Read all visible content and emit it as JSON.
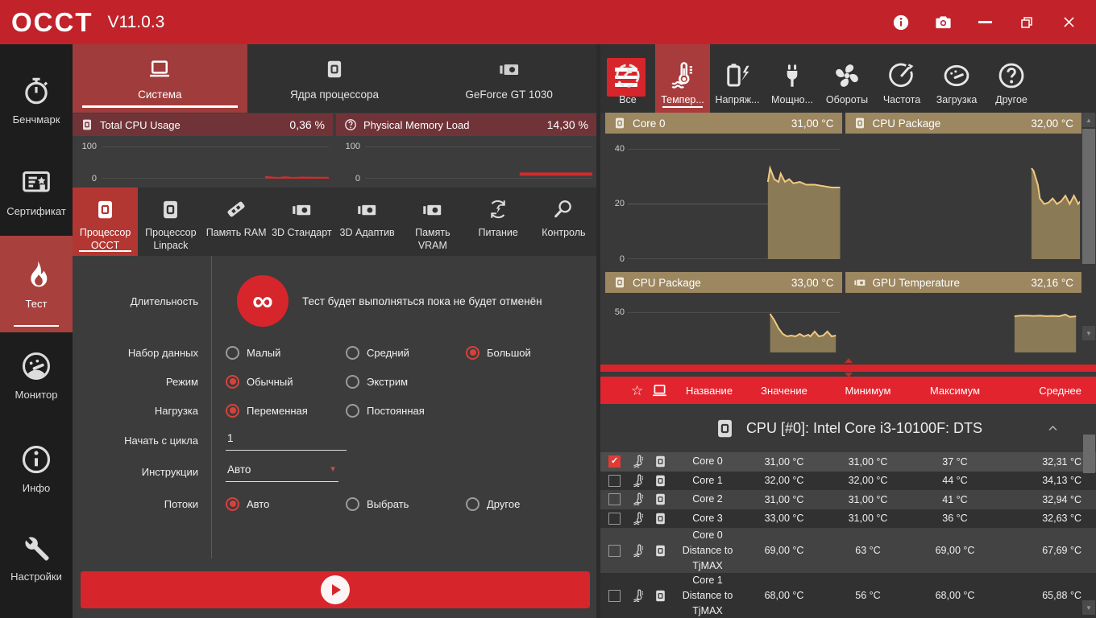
{
  "titlebar": {
    "logo": "OCCT",
    "version": "V11.0.3",
    "window_icons": [
      "info-icon",
      "screenshot-icon",
      "minimize-icon",
      "restore-icon",
      "close-icon"
    ]
  },
  "sidebar": {
    "items": [
      {
        "label": "Бенчмарк",
        "icon": "stopwatch-icon",
        "active": false
      },
      {
        "label": "Сертификат",
        "icon": "certificate-icon",
        "active": false
      },
      {
        "label": "Тест",
        "icon": "flame-icon",
        "active": true
      },
      {
        "label": "Монитор",
        "icon": "gauge-face-icon",
        "active": false
      },
      {
        "label": "Инфо",
        "icon": "info-circle-icon",
        "active": false
      },
      {
        "label": "Настройки",
        "icon": "wrench-icon",
        "active": false
      }
    ]
  },
  "main": {
    "device_tabs": [
      {
        "label": "Система",
        "icon": "laptop-icon",
        "active": true
      },
      {
        "label": "Ядра процессора",
        "icon": "cpu-chip-icon",
        "active": false
      },
      {
        "label": "GeForce GT 1030",
        "icon": "gpu-card-icon",
        "active": false
      }
    ],
    "monitors": [
      {
        "label": "Total CPU Usage",
        "value": "0,36 %",
        "icon": "cpu-chip-icon",
        "ymax": "100",
        "ymin": "0"
      },
      {
        "label": "Physical Memory Load",
        "value": "14,30 %",
        "icon": "question-circle-icon",
        "ymax": "100",
        "ymin": "0"
      }
    ],
    "test_tabs": [
      {
        "label": "Процессор OCCT",
        "icon": "cpu-chip-icon",
        "active": true
      },
      {
        "label": "Процессор Linpack",
        "icon": "cpu-chip-icon",
        "active": false
      },
      {
        "label": "Память RAM",
        "icon": "ram-icon",
        "active": false
      },
      {
        "label": "3D Стандарт",
        "icon": "gpu-card-icon",
        "active": false
      },
      {
        "label": "3D Адаптив",
        "icon": "gpu-card-icon",
        "active": false
      },
      {
        "label": "Память VRAM",
        "icon": "gpu-card-icon",
        "active": false
      },
      {
        "label": "Питание",
        "icon": "power-cycle-icon",
        "active": false
      },
      {
        "label": "Контроль",
        "icon": "magnifier-icon",
        "active": false
      }
    ],
    "form": {
      "duration": {
        "label": "Длительность",
        "infinity": "∞",
        "note": "Тест будет выполняться пока не будет отменён"
      },
      "dataset": {
        "label": "Набор данных",
        "options": [
          {
            "label": "Малый",
            "checked": false
          },
          {
            "label": "Средний",
            "checked": false
          },
          {
            "label": "Большой",
            "checked": true
          }
        ]
      },
      "mode": {
        "label": "Режим",
        "options": [
          {
            "label": "Обычный",
            "checked": true
          },
          {
            "label": "Экстрим",
            "checked": false
          }
        ]
      },
      "load": {
        "label": "Нагрузка",
        "options": [
          {
            "label": "Переменная",
            "checked": true
          },
          {
            "label": "Постоянная",
            "checked": false
          }
        ]
      },
      "start_cycle": {
        "label": "Начать с цикла",
        "value": "1"
      },
      "instructions": {
        "label": "Инструкции",
        "value": "Авто"
      },
      "threads": {
        "label": "Потоки",
        "options": [
          {
            "label": "Авто",
            "checked": true
          },
          {
            "label": "Выбрать",
            "checked": false
          },
          {
            "label": "Другое",
            "checked": false
          }
        ]
      }
    }
  },
  "monitoring": {
    "categories": [
      {
        "label": "Все",
        "icon": "all-gauge-icon",
        "active": false
      },
      {
        "label": "Темпер...",
        "icon": "thermometer-icon",
        "active": true
      },
      {
        "label": "Напряж...",
        "icon": "battery-bolt-icon",
        "active": false
      },
      {
        "label": "Мощно...",
        "icon": "plug-icon",
        "active": false
      },
      {
        "label": "Обороты",
        "icon": "fan-icon",
        "active": false
      },
      {
        "label": "Частота",
        "icon": "speedometer-icon",
        "active": false
      },
      {
        "label": "Загрузка",
        "icon": "load-gauge-icon",
        "active": false
      },
      {
        "label": "Другое",
        "icon": "question-circle-icon",
        "active": false
      }
    ],
    "graphs": [
      {
        "title": "Core 0",
        "value": "31,00 °C",
        "icon": "cpu-chip-icon",
        "yticks": [
          "40",
          "20",
          "0"
        ]
      },
      {
        "title": "CPU Package",
        "value": "32,00 °C",
        "icon": "cpu-chip-icon",
        "yticks": []
      },
      {
        "title": "CPU Package",
        "value": "33,00 °C",
        "icon": "cpu-chip-icon",
        "yticks": [
          "50"
        ]
      },
      {
        "title": "GPU Temperature",
        "value": "32,16 °C",
        "icon": "gpu-card-icon",
        "yticks": []
      }
    ],
    "table": {
      "columns": [
        "Название",
        "Значение",
        "Минимум",
        "Максимум",
        "Среднее"
      ],
      "group": "CPU [#0]: Intel Core i3-10100F: DTS",
      "rows": [
        {
          "name": "Core 0",
          "value": "31,00 °C",
          "min": "31,00 °C",
          "max": "37 °C",
          "avg": "32,31 °C",
          "checked": true
        },
        {
          "name": "Core 1",
          "value": "32,00 °C",
          "min": "32,00 °C",
          "max": "44 °C",
          "avg": "34,13 °C",
          "checked": false
        },
        {
          "name": "Core 2",
          "value": "31,00 °C",
          "min": "31,00 °C",
          "max": "41 °C",
          "avg": "32,94 °C",
          "checked": false
        },
        {
          "name": "Core 3",
          "value": "33,00 °C",
          "min": "31,00 °C",
          "max": "36 °C",
          "avg": "32,63 °C",
          "checked": false
        },
        {
          "name": "Core 0\nDistance to\nTjMAX",
          "value": "69,00 °C",
          "min": "63 °C",
          "max": "69,00 °C",
          "avg": "67,69 °C",
          "checked": false
        },
        {
          "name": "Core 1\nDistance to\nTjMAX",
          "value": "68,00 °C",
          "min": "56 °C",
          "max": "68,00 °C",
          "avg": "65,88 °C",
          "checked": false
        }
      ]
    }
  },
  "colors": {
    "titlebar_red": "#c2232a",
    "bright_red": "#d6252b",
    "active_tab_red": "#a83c3c",
    "table_header_red": "#e1242e",
    "monitor_header_maroon": "#703438",
    "graph_header_tan": "#9c8760",
    "graph_line_gold": "#f2c983",
    "usage_line_red": "#d22b2b"
  },
  "chart_data": [
    {
      "type": "line",
      "title": "Total CPU Usage",
      "current_value": "0,36 %",
      "ylabel": "%",
      "ylim": [
        0,
        100
      ],
      "grid": [
        0,
        100
      ],
      "color": "#d22b2b",
      "thick": 2.5,
      "points": [
        [
          72,
          5
        ],
        [
          75,
          3
        ],
        [
          78,
          2
        ],
        [
          81,
          4
        ],
        [
          84,
          2
        ],
        [
          88,
          3
        ],
        [
          94,
          2.5
        ],
        [
          100,
          2.5
        ]
      ]
    },
    {
      "type": "line",
      "title": "Physical Memory Load",
      "current_value": "14,30 %",
      "ylabel": "%",
      "ylim": [
        0,
        100
      ],
      "grid": [
        0,
        100
      ],
      "color": "#d22b2b",
      "thick": 4,
      "points": [
        [
          68,
          14
        ],
        [
          100,
          14
        ]
      ]
    },
    {
      "type": "area",
      "title": "Core 0",
      "current_value": "31,00 °C",
      "ylabel": "°C",
      "ylim": [
        0,
        40
      ],
      "grid": [
        0,
        50,
        100
      ],
      "color": "#f2c983",
      "fill": "#8a7a55",
      "points": [
        [
          66,
          28
        ],
        [
          67,
          33
        ],
        [
          69,
          29
        ],
        [
          71,
          28
        ],
        [
          72,
          31
        ],
        [
          74,
          28
        ],
        [
          76,
          29
        ],
        [
          78,
          27.5
        ],
        [
          81,
          28
        ],
        [
          84,
          27
        ],
        [
          88,
          27
        ],
        [
          92,
          26.5
        ],
        [
          96,
          26
        ],
        [
          100,
          26
        ]
      ]
    },
    {
      "type": "area",
      "title": "CPU Package",
      "current_value": "32,00 °C",
      "ylabel": "°C",
      "ylim": [
        0,
        40
      ],
      "grid": [],
      "color": "#f2c983",
      "fill": "#8a7a55",
      "points": [
        [
          77,
          33
        ],
        [
          78,
          32
        ],
        [
          80,
          27
        ],
        [
          81,
          22
        ],
        [
          83,
          20
        ],
        [
          85,
          20.5
        ],
        [
          87,
          22
        ],
        [
          89,
          20
        ],
        [
          91,
          21
        ],
        [
          93,
          23
        ],
        [
          95,
          20
        ],
        [
          97,
          23
        ],
        [
          99,
          20
        ],
        [
          100,
          21
        ]
      ]
    },
    {
      "type": "area",
      "title": "CPU Package",
      "current_value": "33,00 °C",
      "ylabel": "°C",
      "ylim": [
        0,
        50
      ],
      "grid": [
        0
      ],
      "color": "#f2c983",
      "fill": "#8a7a55",
      "points": [
        [
          67,
          48
        ],
        [
          69,
          40
        ],
        [
          71,
          30
        ],
        [
          73,
          23
        ],
        [
          75,
          20
        ],
        [
          77,
          21
        ],
        [
          79,
          20
        ],
        [
          81,
          23
        ],
        [
          83,
          20
        ],
        [
          85,
          22
        ],
        [
          86,
          20
        ],
        [
          88,
          26
        ],
        [
          90,
          20
        ],
        [
          92,
          21
        ],
        [
          94,
          26
        ],
        [
          96,
          20
        ],
        [
          98,
          21
        ]
      ]
    },
    {
      "type": "area",
      "title": "GPU Temperature",
      "current_value": "32,16 °C",
      "ylabel": "°C",
      "ylim": [
        0,
        35
      ],
      "grid": [],
      "color": "#f2c983",
      "fill": "#8a7a55",
      "points": [
        [
          69,
          31.5
        ],
        [
          72,
          32
        ],
        [
          75,
          32
        ],
        [
          78,
          31.8
        ],
        [
          81,
          32
        ],
        [
          84,
          31.6
        ],
        [
          87,
          31.8
        ],
        [
          90,
          31.5
        ],
        [
          93,
          33
        ],
        [
          95,
          31
        ],
        [
          97,
          31.2
        ],
        [
          98,
          31.5
        ]
      ]
    }
  ]
}
